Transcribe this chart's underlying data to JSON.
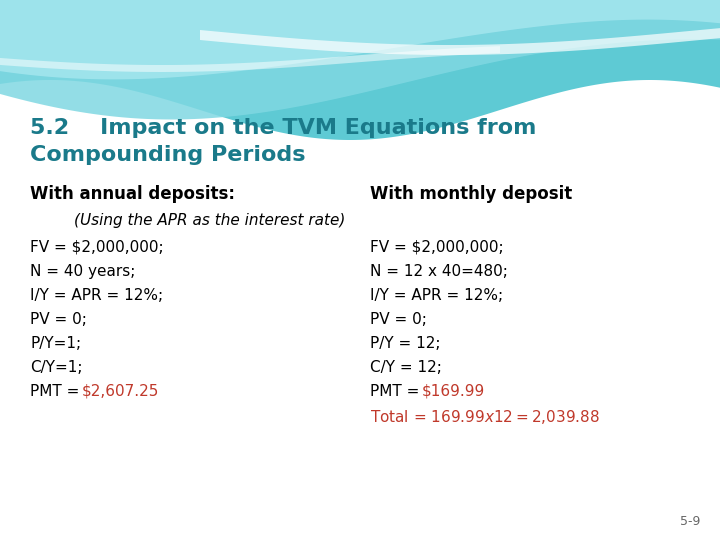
{
  "title_line1": "5.2    Impact on the TVM Equations from",
  "title_line2": "Compounding Periods",
  "title_color": "#1a7a8a",
  "background_color": "#ffffff",
  "header_left": "With annual deposits:",
  "header_right": "With monthly deposit",
  "center_note": "(Using the APR as the interest rate)",
  "left_pmt_prefix": "PMT = ",
  "left_pmt_value": "$2,607.25",
  "left_pmt_color": "#c0392b",
  "right_pmt_prefix": "PMT = ",
  "right_pmt_value": "$169.99",
  "right_pmt_color": "#c0392b",
  "right_total": "Total = $169.99 x 12 = $2,039.88",
  "right_total_color": "#c0392b",
  "page_number": "5-9",
  "left_labels": [
    "FV = $2,000,000;",
    "N = 40 years;",
    "I/Y = APR = 12%;",
    "PV = 0;",
    "P/Y=1;",
    "C/Y=1;"
  ],
  "right_labels": [
    "FV = $2,000,000;",
    "N = 12 x 40=480;",
    "I/Y = APR = 12%;",
    "PV = 0;",
    "P/Y = 12;",
    "C/Y = 12;"
  ]
}
